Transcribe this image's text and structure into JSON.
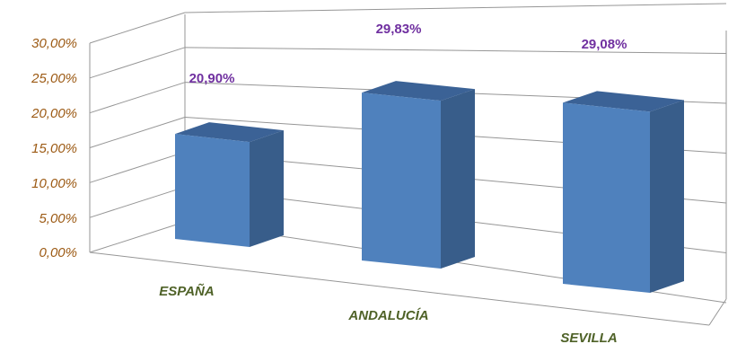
{
  "chart_data": {
    "type": "bar",
    "style": "3d-perspective-column",
    "title": "",
    "xlabel": "",
    "ylabel": "",
    "categories": [
      "ESPAÑA",
      "ANDALUCÍA",
      "SEVILLA"
    ],
    "values": [
      20.9,
      29.83,
      29.08
    ],
    "data_labels": [
      "20,90%",
      "29,83%",
      "29,08%"
    ],
    "yticks": [
      "0,00%",
      "5,00%",
      "10,00%",
      "15,00%",
      "20,00%",
      "25,00%",
      "30,00%"
    ],
    "ylim": [
      0,
      30
    ],
    "grid": true,
    "legend": "none",
    "colors": {
      "bar_front": "#4f81bd",
      "bar_side": "#385d8a",
      "bar_top": "#3b6296",
      "data_label": "#7030a0",
      "x_tick": "#4f6228",
      "y_tick": "#9c5a14",
      "grid": "#969696"
    }
  }
}
